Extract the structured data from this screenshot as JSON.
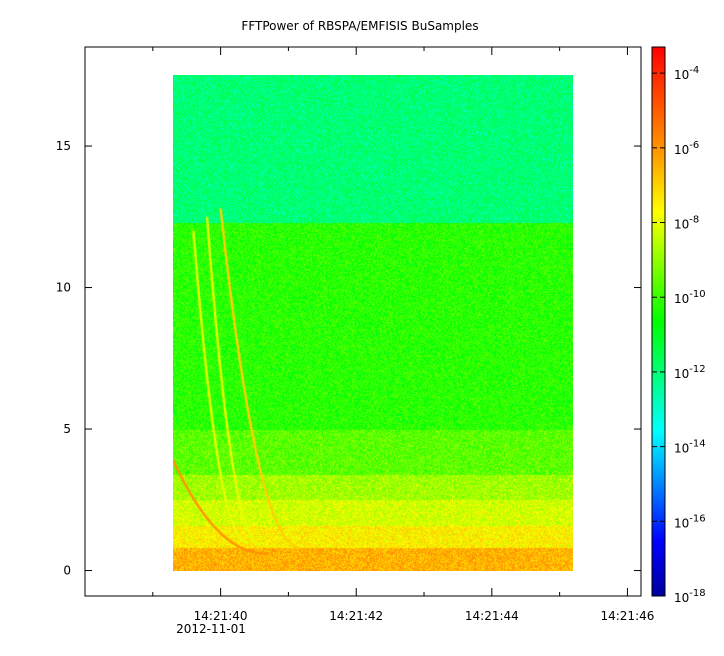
{
  "chart_data": {
    "type": "heatmap",
    "title": "FFTPower of RBSPA/EMFISIS  BuSamples",
    "xlabel": "",
    "ylabel": "",
    "x_date_label": "2012-11-01",
    "x_range_seconds": [
      38.0,
      46.2
    ],
    "x_ticks": [
      {
        "value": 40,
        "label": "14:21:40"
      },
      {
        "value": 42,
        "label": "14:21:42"
      },
      {
        "value": 44,
        "label": "14:21:44"
      },
      {
        "value": 46,
        "label": "14:21:46"
      }
    ],
    "x_minor_ticks": [
      39,
      41,
      43,
      45
    ],
    "ylim": [
      -0.9,
      18.5
    ],
    "y_ticks": [
      0,
      5,
      10,
      15
    ],
    "data_extent": {
      "x": [
        39.3,
        45.2
      ],
      "y": [
        0,
        17.5
      ]
    },
    "band_levels": [
      {
        "y_from": 0.0,
        "y_to": 0.8,
        "log_power": -6.5
      },
      {
        "y_from": 0.8,
        "y_to": 1.6,
        "log_power": -7.5
      },
      {
        "y_from": 1.6,
        "y_to": 2.5,
        "log_power": -8.2
      },
      {
        "y_from": 2.5,
        "y_to": 3.4,
        "log_power": -8.8
      },
      {
        "y_from": 3.4,
        "y_to": 5.0,
        "log_power": -9.6
      },
      {
        "y_from": 5.0,
        "y_to": 12.3,
        "log_power": -10.2
      },
      {
        "y_from": 12.3,
        "y_to": 17.5,
        "log_power": -12.0
      }
    ],
    "features": [
      {
        "t0": 39.3,
        "f0": 3.9,
        "t1": 40.7,
        "f1": 0.6,
        "log_power": -6.0
      },
      {
        "t0": 39.6,
        "f0": 12.0,
        "t1": 40.4,
        "f1": 1.0,
        "log_power": -8.0
      },
      {
        "t0": 39.8,
        "f0": 12.5,
        "t1": 40.6,
        "f1": 0.9,
        "log_power": -8.0
      },
      {
        "t0": 40.0,
        "f0": 12.8,
        "t1": 41.2,
        "f1": 0.8,
        "log_power": -7.0
      }
    ],
    "colorbar": {
      "scale": "log",
      "range": [
        -18,
        -3.3
      ],
      "colors": [
        "#0000a0",
        "#0000ff",
        "#0080ff",
        "#00ffff",
        "#00ff80",
        "#00ff00",
        "#80ff00",
        "#ffff00",
        "#ffa000",
        "#ff5000",
        "#ff0000"
      ],
      "ticks": [
        {
          "exp": -4,
          "base": "10",
          "sup": "-4"
        },
        {
          "exp": -6,
          "base": "10",
          "sup": "-6"
        },
        {
          "exp": -8,
          "base": "10",
          "sup": "-8"
        },
        {
          "exp": -10,
          "base": "10",
          "sup": "-10"
        },
        {
          "exp": -12,
          "base": "10",
          "sup": "-12"
        },
        {
          "exp": -14,
          "base": "10",
          "sup": "-14"
        },
        {
          "exp": -16,
          "base": "10",
          "sup": "-16"
        },
        {
          "exp": -18,
          "base": "10",
          "sup": "-18"
        }
      ]
    }
  }
}
